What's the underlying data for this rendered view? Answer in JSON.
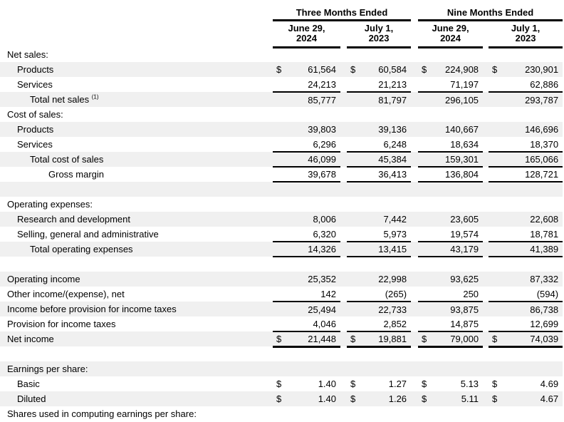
{
  "currency_symbol": "$",
  "colors": {
    "row_shading": "#f0f0f0",
    "rule": "#000000",
    "text": "#000000",
    "background": "#ffffff"
  },
  "header": {
    "period_groups": [
      {
        "label": "Three Months Ended",
        "columns": [
          {
            "line1": "June 29,",
            "line2": "2024"
          },
          {
            "line1": "July 1,",
            "line2": "2023"
          }
        ]
      },
      {
        "label": "Nine Months Ended",
        "columns": [
          {
            "line1": "June 29,",
            "line2": "2024"
          },
          {
            "line1": "July 1,",
            "line2": "2023"
          }
        ]
      }
    ]
  },
  "rows": [
    {
      "type": "section",
      "label": "Net sales:",
      "indent": 0,
      "shaded": false
    },
    {
      "type": "data",
      "label": "Products",
      "indent": 1,
      "shaded": true,
      "dollar": true,
      "rule": "none",
      "values": [
        "61,564",
        "60,584",
        "224,908",
        "230,901"
      ]
    },
    {
      "type": "data",
      "label": "Services",
      "indent": 1,
      "shaded": false,
      "dollar": false,
      "rule": "single",
      "values": [
        "24,213",
        "21,213",
        "71,197",
        "62,886"
      ]
    },
    {
      "type": "data",
      "label": "Total net sales",
      "footnote": "(1)",
      "indent": 2,
      "shaded": true,
      "dollar": false,
      "rule": "none",
      "values": [
        "85,777",
        "81,797",
        "296,105",
        "293,787"
      ]
    },
    {
      "type": "section",
      "label": "Cost of sales:",
      "indent": 0,
      "shaded": false
    },
    {
      "type": "data",
      "label": "Products",
      "indent": 1,
      "shaded": true,
      "dollar": false,
      "rule": "none",
      "values": [
        "39,803",
        "39,136",
        "140,667",
        "146,696"
      ]
    },
    {
      "type": "data",
      "label": "Services",
      "indent": 1,
      "shaded": false,
      "dollar": false,
      "rule": "single",
      "values": [
        "6,296",
        "6,248",
        "18,634",
        "18,370"
      ]
    },
    {
      "type": "data",
      "label": "Total cost of sales",
      "indent": 2,
      "shaded": true,
      "dollar": false,
      "rule": "single",
      "values": [
        "46,099",
        "45,384",
        "159,301",
        "165,066"
      ]
    },
    {
      "type": "data",
      "label": "Gross margin",
      "indent": 3,
      "shaded": false,
      "dollar": false,
      "rule": "single",
      "values": [
        "39,678",
        "36,413",
        "136,804",
        "128,721"
      ]
    },
    {
      "type": "spacer",
      "shaded": true
    },
    {
      "type": "section",
      "label": "Operating expenses:",
      "indent": 0,
      "shaded": false
    },
    {
      "type": "data",
      "label": "Research and development",
      "indent": 1,
      "shaded": true,
      "dollar": false,
      "rule": "none",
      "values": [
        "8,006",
        "7,442",
        "23,605",
        "22,608"
      ]
    },
    {
      "type": "data",
      "label": "Selling, general and administrative",
      "indent": 1,
      "shaded": false,
      "dollar": false,
      "rule": "single",
      "values": [
        "6,320",
        "5,973",
        "19,574",
        "18,781"
      ]
    },
    {
      "type": "data",
      "label": "Total operating expenses",
      "indent": 2,
      "shaded": true,
      "dollar": false,
      "rule": "single",
      "values": [
        "14,326",
        "13,415",
        "43,179",
        "41,389"
      ]
    },
    {
      "type": "spacer",
      "shaded": false
    },
    {
      "type": "data",
      "label": "Operating income",
      "indent": 0,
      "shaded": true,
      "dollar": false,
      "rule": "none",
      "values": [
        "25,352",
        "22,998",
        "93,625",
        "87,332"
      ]
    },
    {
      "type": "data",
      "label": "Other income/(expense), net",
      "indent": 0,
      "shaded": false,
      "dollar": false,
      "rule": "single",
      "values": [
        "142",
        "(265)",
        "250",
        "(594)"
      ]
    },
    {
      "type": "data",
      "label": "Income before provision for income taxes",
      "indent": 0,
      "shaded": true,
      "dollar": false,
      "rule": "none",
      "values": [
        "25,494",
        "22,733",
        "93,875",
        "86,738"
      ]
    },
    {
      "type": "data",
      "label": "Provision for income taxes",
      "indent": 0,
      "shaded": false,
      "dollar": false,
      "rule": "single",
      "values": [
        "4,046",
        "2,852",
        "14,875",
        "12,699"
      ]
    },
    {
      "type": "data",
      "label": "Net income",
      "indent": 0,
      "shaded": true,
      "dollar": true,
      "rule": "thick",
      "values": [
        "21,448",
        "19,881",
        "79,000",
        "74,039"
      ]
    },
    {
      "type": "spacer",
      "shaded": false
    },
    {
      "type": "section",
      "label": "Earnings per share:",
      "indent": 0,
      "shaded": true
    },
    {
      "type": "data",
      "label": "Basic",
      "indent": 1,
      "shaded": false,
      "dollar": true,
      "rule": "none",
      "values": [
        "1.40",
        "1.27",
        "5.13",
        "4.69"
      ]
    },
    {
      "type": "data",
      "label": "Diluted",
      "indent": 1,
      "shaded": true,
      "dollar": true,
      "rule": "none",
      "values": [
        "1.40",
        "1.26",
        "5.11",
        "4.67"
      ]
    },
    {
      "type": "section",
      "label": "Shares used in computing earnings per share:",
      "indent": 0,
      "shaded": false
    }
  ]
}
